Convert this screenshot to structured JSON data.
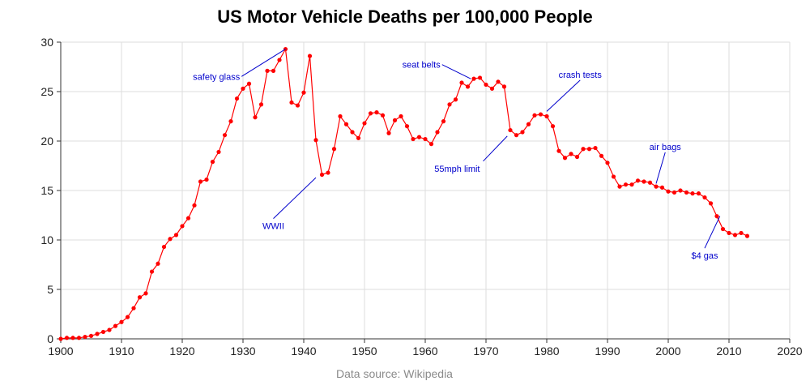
{
  "chart_data": {
    "type": "line",
    "title": "US Motor Vehicle Deaths per 100,000 People",
    "source": "Data source: Wikipedia",
    "xlabel": "",
    "ylabel": "",
    "xlim": [
      1900,
      2020
    ],
    "ylim": [
      0,
      30
    ],
    "xticks": [
      1900,
      1910,
      1920,
      1930,
      1940,
      1950,
      1960,
      1970,
      1980,
      1990,
      2000,
      2010,
      2020
    ],
    "yticks": [
      0,
      5,
      10,
      15,
      20,
      25,
      30
    ],
    "grid": true,
    "line_color": "#ff0000",
    "annotation_color": "#0000cc",
    "series": [
      {
        "x": [
          1900,
          1901,
          1902,
          1903,
          1904,
          1905,
          1906,
          1907,
          1908,
          1909,
          1910,
          1911,
          1912,
          1913,
          1914,
          1915,
          1916,
          1917,
          1918,
          1919,
          1920,
          1921,
          1922,
          1923,
          1924,
          1925,
          1926,
          1927,
          1928,
          1929,
          1930,
          1931,
          1932,
          1933,
          1934,
          1935,
          1936,
          1937,
          1938,
          1939,
          1940,
          1941,
          1942,
          1943,
          1944,
          1945,
          1946,
          1947,
          1948,
          1949,
          1950,
          1951,
          1952,
          1953,
          1954,
          1955,
          1956,
          1957,
          1958,
          1959,
          1960,
          1961,
          1962,
          1963,
          1964,
          1965,
          1966,
          1967,
          1968,
          1969,
          1970,
          1971,
          1972,
          1973,
          1974,
          1975,
          1976,
          1977,
          1978,
          1979,
          1980,
          1981,
          1982,
          1983,
          1984,
          1985,
          1986,
          1987,
          1988,
          1989,
          1990,
          1991,
          1992,
          1993,
          1994,
          1995,
          1996,
          1997,
          1998,
          1999,
          2000,
          2001,
          2002,
          2003,
          2004,
          2005,
          2006,
          2007,
          2008,
          2009,
          2010,
          2011,
          2012,
          2013
        ],
        "y": [
          0.0,
          0.1,
          0.1,
          0.1,
          0.2,
          0.3,
          0.5,
          0.7,
          0.9,
          1.3,
          1.7,
          2.2,
          3.1,
          4.2,
          4.6,
          6.8,
          7.6,
          9.3,
          10.1,
          10.5,
          11.4,
          12.2,
          13.5,
          15.9,
          16.1,
          17.9,
          18.9,
          20.6,
          22.0,
          24.3,
          25.3,
          25.8,
          22.4,
          23.7,
          27.1,
          27.1,
          28.2,
          29.3,
          23.9,
          23.6,
          24.9,
          28.6,
          20.1,
          16.6,
          16.8,
          19.2,
          22.5,
          21.7,
          20.9,
          20.3,
          21.8,
          22.8,
          22.9,
          22.6,
          20.8,
          22.1,
          22.5,
          21.5,
          20.2,
          20.4,
          20.2,
          19.7,
          20.9,
          22.0,
          23.7,
          24.2,
          25.9,
          25.5,
          26.3,
          26.4,
          25.7,
          25.3,
          26.0,
          25.5,
          21.1,
          20.6,
          20.9,
          21.7,
          22.6,
          22.7,
          22.5,
          21.5,
          19.0,
          18.3,
          18.7,
          18.4,
          19.2,
          19.2,
          19.3,
          18.5,
          17.8,
          16.4,
          15.4,
          15.6,
          15.6,
          16.0,
          15.9,
          15.8,
          15.4,
          15.3,
          14.9,
          14.8,
          15.0,
          14.8,
          14.7,
          14.7,
          14.3,
          13.7,
          12.4,
          11.1,
          10.7,
          10.5,
          10.7,
          10.4
        ]
      }
    ],
    "annotations": [
      {
        "text": "safety glass",
        "x": 1937,
        "y": 29.3,
        "text_x": 1929.5,
        "text_y": 26.2,
        "anchor": "end"
      },
      {
        "text": "WWII",
        "x": 1942,
        "y": 16.3,
        "text_x": 1935,
        "text_y": 11.1,
        "anchor": "middle"
      },
      {
        "text": "seat belts",
        "x": 1967.5,
        "y": 26.3,
        "text_x": 1962.5,
        "text_y": 27.4,
        "anchor": "end"
      },
      {
        "text": "crash tests",
        "x": 1980,
        "y": 23.0,
        "text_x": 1985.5,
        "text_y": 26.4,
        "anchor": "middle"
      },
      {
        "text": "55mph limit",
        "x": 1973.5,
        "y": 20.5,
        "text_x": 1969,
        "text_y": 16.9,
        "anchor": "end"
      },
      {
        "text": "air bags",
        "x": 1998,
        "y": 15.7,
        "text_x": 1999.5,
        "text_y": 19.1,
        "anchor": "middle"
      },
      {
        "text": "$4 gas",
        "x": 2008.5,
        "y": 12.4,
        "text_x": 2006,
        "text_y": 8.1,
        "anchor": "middle"
      }
    ]
  }
}
